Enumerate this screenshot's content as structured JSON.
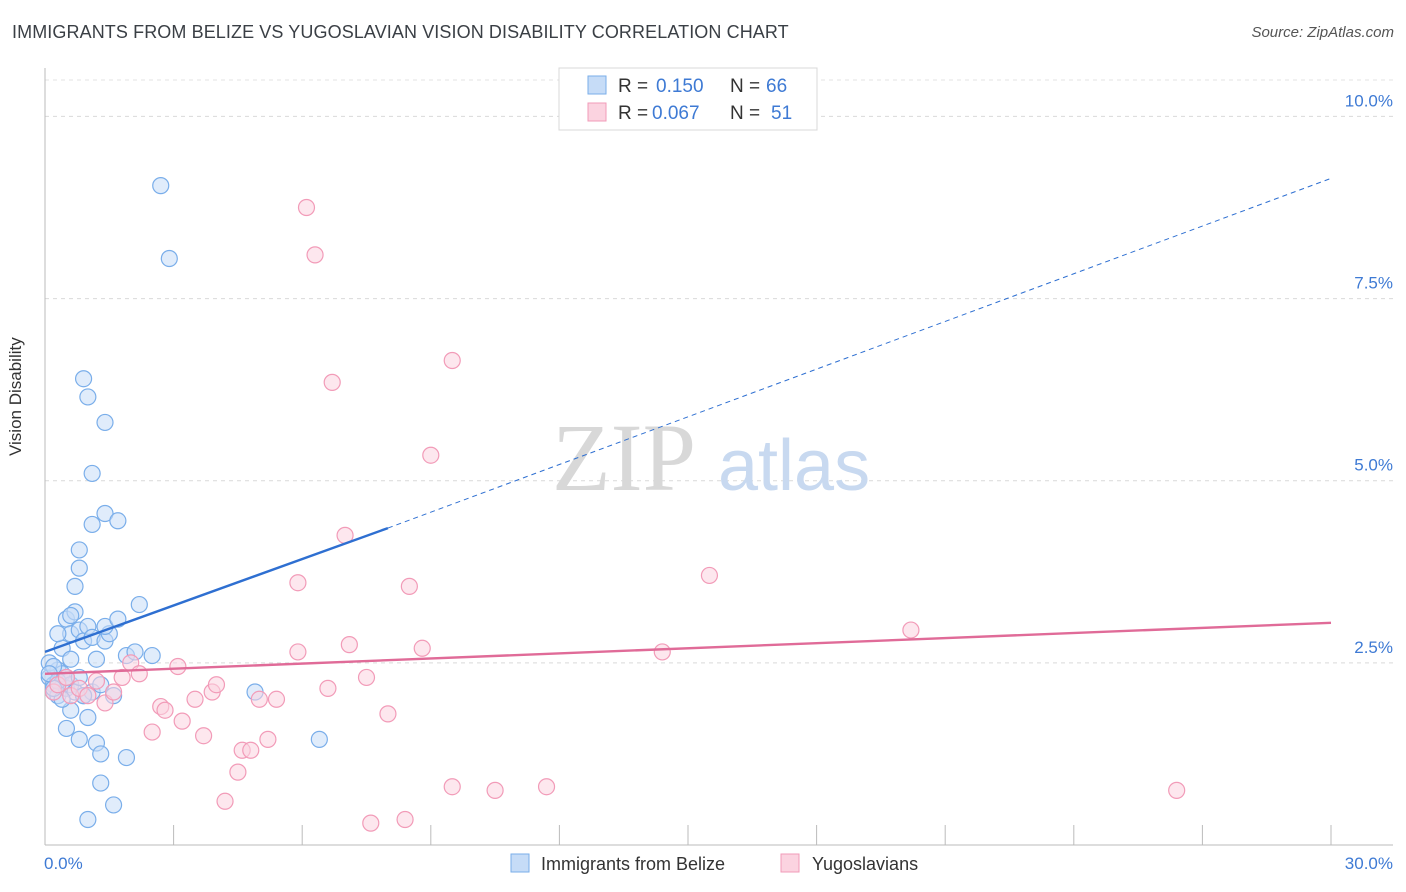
{
  "title": "IMMIGRANTS FROM BELIZE VS YUGOSLAVIAN VISION DISABILITY CORRELATION CHART",
  "source": "Source: ZipAtlas.com",
  "watermark": {
    "zip": "ZIP",
    "atlas": "atlas"
  },
  "legend_top": [
    {
      "r_label": "R =",
      "r_value": "0.150",
      "n_label": "N =",
      "n_value": "66"
    },
    {
      "r_label": "R =",
      "r_value": "0.067",
      "n_label": "N =",
      "n_value": "51"
    }
  ],
  "chart_data": {
    "type": "scatter",
    "ylabel": "Vision Disability",
    "xlim": [
      0,
      30
    ],
    "ylim": [
      0,
      10.5
    ],
    "x_tick_labels": {
      "min": "0.0%",
      "max": "30.0%"
    },
    "y_ticks": [
      {
        "value": 10,
        "label": "10.0%"
      },
      {
        "value": 7.5,
        "label": "7.5%"
      },
      {
        "value": 5,
        "label": "5.0%"
      },
      {
        "value": 2.5,
        "label": "2.5%"
      }
    ],
    "series": [
      {
        "name": "Immigrants from Belize",
        "color": "#7aaeea",
        "fill": "#c6dcf7",
        "line_color": "#2e6fd1",
        "trend": {
          "x0": 0,
          "y0": 2.65,
          "x1": 8,
          "y1": 4.35,
          "dash_to_x": 30,
          "dash_to_y": 9.15
        },
        "points": [
          [
            0.1,
            2.3
          ],
          [
            0.2,
            2.2
          ],
          [
            0.3,
            2.4
          ],
          [
            0.1,
            2.5
          ],
          [
            0.2,
            2.1
          ],
          [
            0.4,
            2.35
          ],
          [
            0.3,
            2.05
          ],
          [
            0.5,
            2.15
          ],
          [
            0.2,
            2.45
          ],
          [
            0.6,
            2.2
          ],
          [
            0.4,
            2.7
          ],
          [
            0.5,
            3.1
          ],
          [
            0.6,
            2.9
          ],
          [
            0.7,
            3.2
          ],
          [
            0.8,
            2.95
          ],
          [
            0.9,
            2.8
          ],
          [
            1.0,
            3.0
          ],
          [
            1.1,
            2.85
          ],
          [
            0.6,
            2.55
          ],
          [
            0.7,
            2.1
          ],
          [
            0.5,
            1.6
          ],
          [
            0.6,
            1.85
          ],
          [
            0.8,
            1.45
          ],
          [
            1.0,
            1.75
          ],
          [
            1.2,
            1.4
          ],
          [
            1.3,
            1.25
          ],
          [
            1.3,
            0.85
          ],
          [
            1.6,
            0.55
          ],
          [
            1.0,
            0.35
          ],
          [
            0.9,
            2.05
          ],
          [
            1.1,
            2.1
          ],
          [
            1.2,
            2.55
          ],
          [
            1.4,
            2.8
          ],
          [
            1.5,
            2.9
          ],
          [
            1.6,
            2.05
          ],
          [
            1.4,
            3.0
          ],
          [
            1.7,
            3.1
          ],
          [
            1.9,
            2.6
          ],
          [
            2.1,
            2.65
          ],
          [
            2.2,
            3.3
          ],
          [
            2.5,
            2.6
          ],
          [
            1.9,
            1.2
          ],
          [
            0.7,
            3.55
          ],
          [
            0.8,
            3.8
          ],
          [
            0.8,
            4.05
          ],
          [
            1.1,
            4.4
          ],
          [
            1.4,
            4.55
          ],
          [
            1.7,
            4.45
          ],
          [
            1.1,
            5.1
          ],
          [
            1.4,
            5.8
          ],
          [
            1.0,
            6.15
          ],
          [
            0.9,
            6.4
          ],
          [
            2.7,
            9.05
          ],
          [
            2.9,
            8.05
          ],
          [
            4.9,
            2.1
          ],
          [
            6.4,
            1.45
          ],
          [
            0.3,
            2.25
          ],
          [
            0.4,
            2.0
          ],
          [
            0.2,
            2.15
          ],
          [
            0.1,
            2.35
          ],
          [
            0.3,
            2.9
          ],
          [
            0.6,
            3.15
          ],
          [
            0.9,
            2.05
          ],
          [
            1.3,
            2.2
          ],
          [
            0.5,
            2.3
          ],
          [
            0.8,
            2.3
          ]
        ]
      },
      {
        "name": "Yugoslavians",
        "color": "#f29bb8",
        "fill": "#fbd3e0",
        "line_color": "#e06b98",
        "trend": {
          "x0": 0,
          "y0": 2.35,
          "x1": 30,
          "y1": 3.05
        },
        "points": [
          [
            0.2,
            2.1
          ],
          [
            0.3,
            2.2
          ],
          [
            0.5,
            2.3
          ],
          [
            0.6,
            2.05
          ],
          [
            0.8,
            2.15
          ],
          [
            1.0,
            2.05
          ],
          [
            1.2,
            2.25
          ],
          [
            1.4,
            1.95
          ],
          [
            1.6,
            2.1
          ],
          [
            1.8,
            2.3
          ],
          [
            2.0,
            2.5
          ],
          [
            2.2,
            2.35
          ],
          [
            2.5,
            1.55
          ],
          [
            2.7,
            1.9
          ],
          [
            2.8,
            1.85
          ],
          [
            3.1,
            2.45
          ],
          [
            3.2,
            1.7
          ],
          [
            3.5,
            2.0
          ],
          [
            3.7,
            1.5
          ],
          [
            3.9,
            2.1
          ],
          [
            4.0,
            2.2
          ],
          [
            4.2,
            0.6
          ],
          [
            4.5,
            1.0
          ],
          [
            4.6,
            1.3
          ],
          [
            4.8,
            1.3
          ],
          [
            5.0,
            2.0
          ],
          [
            5.2,
            1.45
          ],
          [
            5.4,
            2.0
          ],
          [
            5.9,
            3.6
          ],
          [
            5.9,
            2.65
          ],
          [
            6.6,
            2.15
          ],
          [
            7.1,
            2.75
          ],
          [
            7.5,
            2.3
          ],
          [
            7.6,
            0.3
          ],
          [
            8.0,
            1.8
          ],
          [
            8.4,
            0.35
          ],
          [
            8.5,
            3.55
          ],
          [
            8.8,
            2.7
          ],
          [
            9.5,
            0.8
          ],
          [
            10.5,
            0.75
          ],
          [
            11.7,
            0.8
          ],
          [
            14.4,
            2.65
          ],
          [
            15.5,
            3.7
          ],
          [
            20.2,
            2.95
          ],
          [
            26.4,
            0.75
          ],
          [
            6.1,
            8.75
          ],
          [
            6.3,
            8.1
          ],
          [
            6.7,
            6.35
          ],
          [
            9.5,
            6.65
          ],
          [
            9.0,
            5.35
          ],
          [
            7.0,
            4.25
          ]
        ]
      }
    ]
  },
  "legend_bottom": [
    "Immigrants from Belize",
    "Yugoslavians"
  ]
}
